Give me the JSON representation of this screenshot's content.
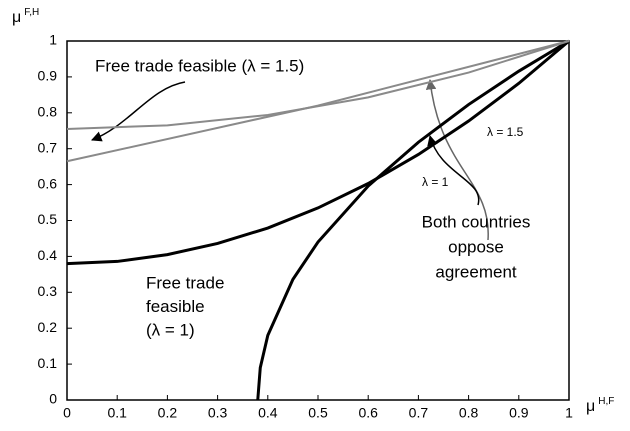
{
  "chart_data": {
    "type": "line",
    "x_label": {
      "text": "μ",
      "sup": "H,F"
    },
    "y_label": {
      "text": "μ",
      "sup": "F,H"
    },
    "xlim": [
      0,
      1
    ],
    "ylim": [
      0,
      1
    ],
    "xticks": [
      0,
      0.1,
      0.2,
      0.3,
      0.4,
      0.5,
      0.6,
      0.7,
      0.8,
      0.9,
      1
    ],
    "yticks": [
      0,
      0.1,
      0.2,
      0.3,
      0.4,
      0.5,
      0.6,
      0.7,
      0.8,
      0.9,
      1
    ],
    "series": [
      {
        "color": "#000000",
        "width": 3,
        "x": [
          0,
          0.1,
          0.2,
          0.3,
          0.4,
          0.5,
          0.6,
          0.7,
          0.8,
          0.9,
          1
        ],
        "values": [
          0.38,
          0.386,
          0.405,
          0.436,
          0.479,
          0.535,
          0.603,
          0.684,
          0.777,
          0.882,
          1
        ]
      },
      {
        "color": "#000000",
        "width": 3,
        "x": [
          0.38,
          0.385,
          0.4,
          0.45,
          0.5,
          0.6,
          0.7,
          0.8,
          0.9,
          1
        ],
        "values": [
          0,
          0.09,
          0.18,
          0.336,
          0.44,
          0.596,
          0.718,
          0.823,
          0.916,
          1
        ]
      },
      {
        "color": "#8a8a8a",
        "width": 2,
        "x": [
          0,
          0.2,
          0.4,
          0.6,
          0.8,
          1
        ],
        "values": [
          0.755,
          0.765,
          0.794,
          0.843,
          0.912,
          1
        ]
      },
      {
        "color": "#8a8a8a",
        "width": 2,
        "x": [
          0,
          0.5,
          1
        ],
        "values": [
          0.665,
          0.82,
          1
        ]
      }
    ],
    "annotations": [
      {
        "lines": [
          "Free trade feasible (λ = 1.5)"
        ]
      },
      {
        "lines": [
          "λ = 1.5"
        ]
      },
      {
        "lines": [
          "λ = 1"
        ]
      },
      {
        "lines": [
          "Both countries",
          "oppose",
          "agreement"
        ]
      },
      {
        "lines": [
          "Free trade",
          "feasible",
          "(λ = 1)"
        ]
      }
    ]
  }
}
